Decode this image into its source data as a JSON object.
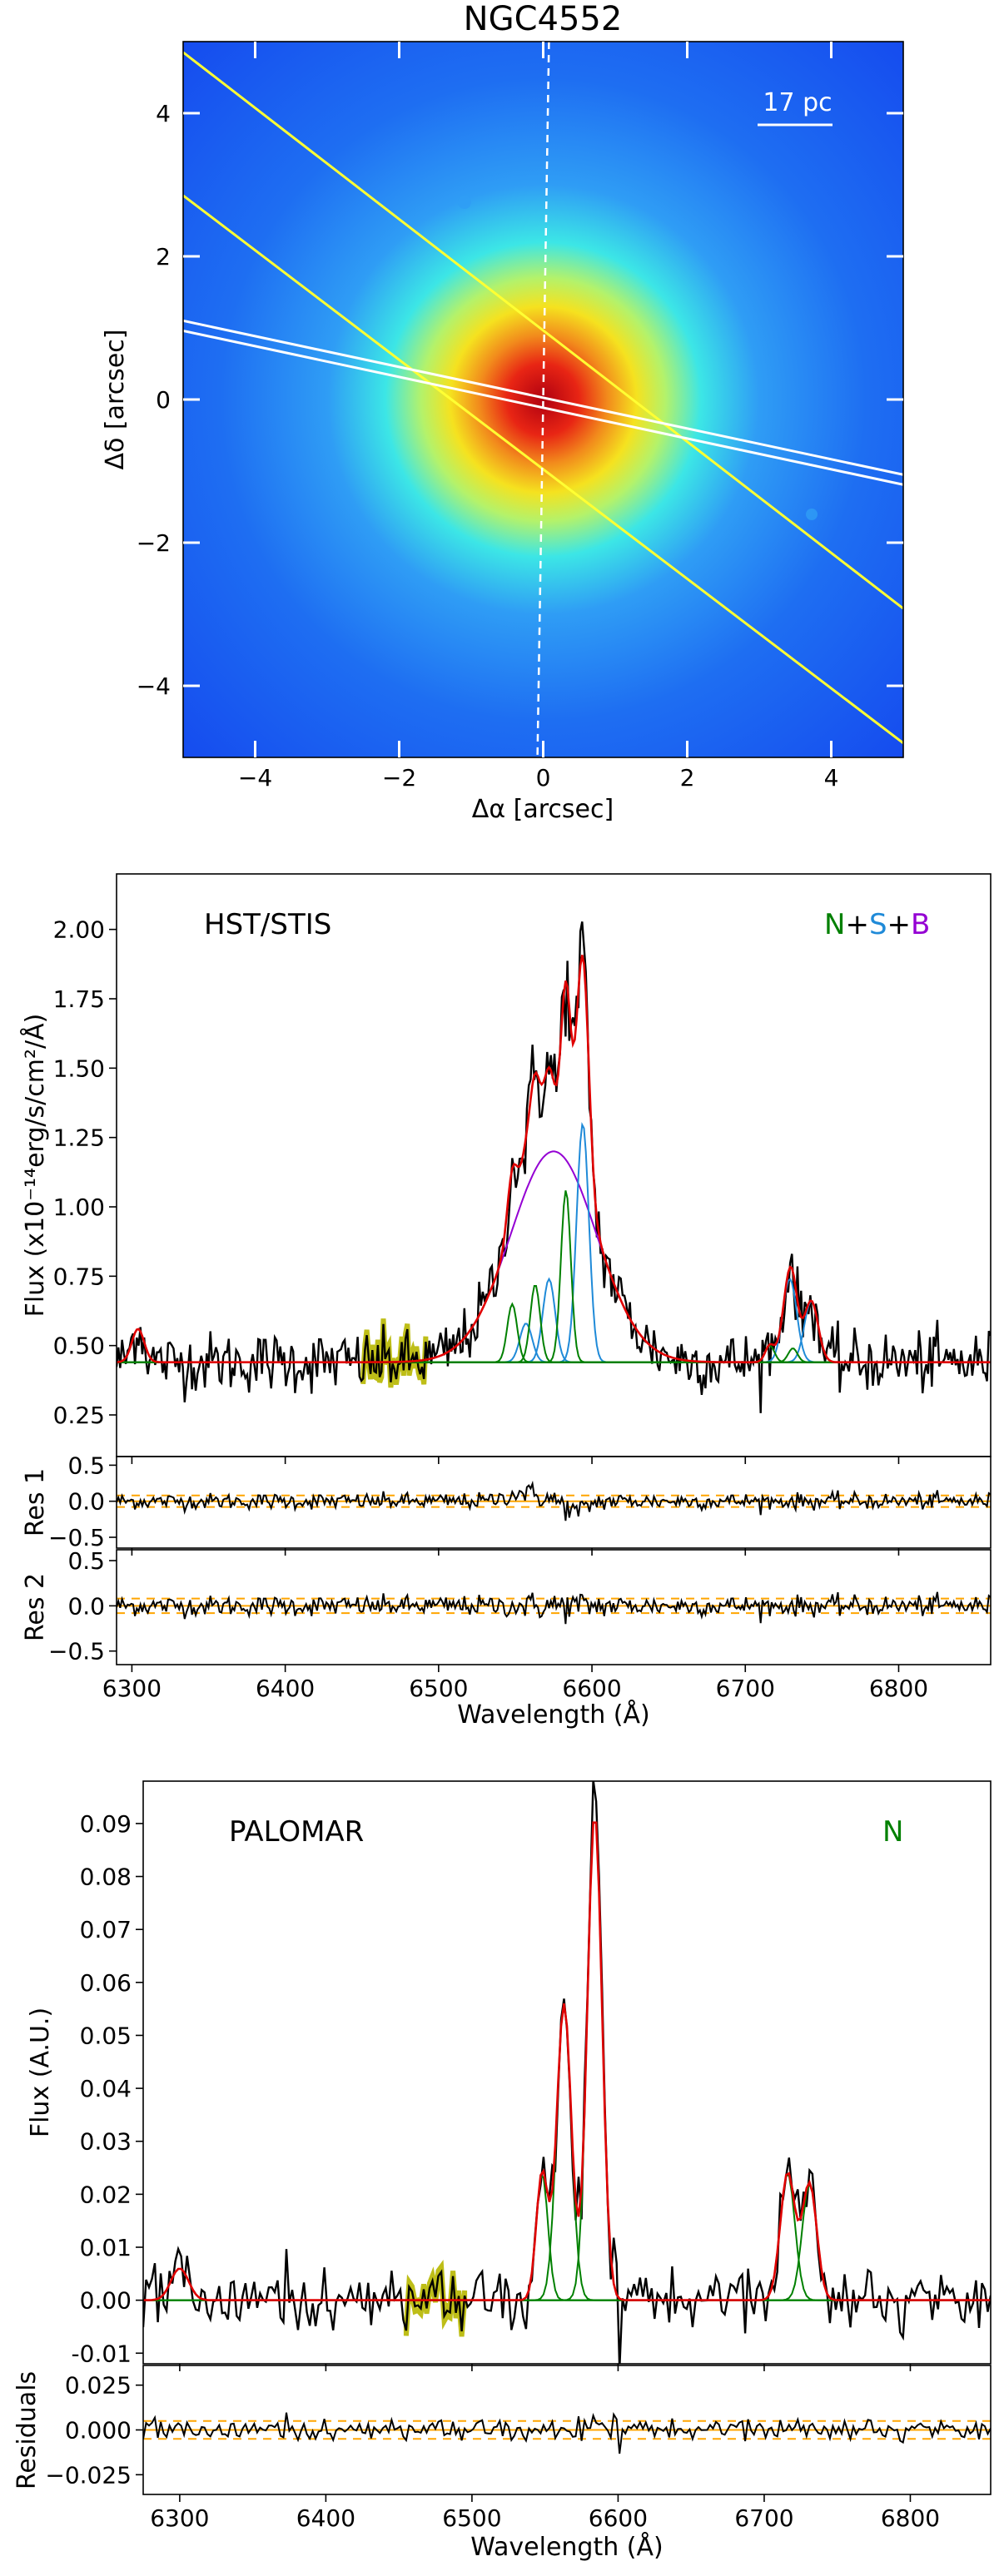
{
  "chart_data": [
    {
      "type": "heatmap",
      "title": "NGC4552",
      "xlabel": "Δα [arcsec]",
      "ylabel": "Δδ [arcsec]",
      "xlim": [
        -5,
        5
      ],
      "ylim": [
        -5,
        5
      ],
      "xticks": [
        -4,
        -2,
        0,
        2,
        4
      ],
      "yticks": [
        -4,
        -2,
        0,
        2,
        4
      ],
      "xtick_labels": [
        "−4",
        "−2",
        "0",
        "2",
        "4"
      ],
      "ytick_labels": [
        "−4",
        "−2",
        "0",
        "2",
        "4"
      ],
      "scale_bar_label": "17 pc",
      "colormap": [
        "#0a1f9e",
        "#1446ee",
        "#2f9df5",
        "#3ce6e6",
        "#b4f26a",
        "#f5e21f",
        "#f28c1c",
        "#e82514",
        "#b00010"
      ],
      "slit_lines": [
        {
          "color": "#ffff33",
          "p1": [
            -5,
            4.85
          ],
          "p2": [
            5,
            -2.92
          ]
        },
        {
          "color": "#ffff33",
          "p1": [
            -5,
            2.85
          ],
          "p2": [
            5,
            -4.8
          ]
        },
        {
          "color": "#ffffff",
          "p1": [
            -5,
            1.1
          ],
          "p2": [
            5,
            -1.05
          ]
        },
        {
          "color": "#ffffff",
          "p1": [
            -5,
            0.96
          ],
          "p2": [
            5,
            -1.19
          ]
        }
      ],
      "north_line": {
        "color": "#ffffff",
        "p1": [
          0.08,
          5
        ],
        "p2": [
          -0.08,
          -5
        ]
      }
    },
    {
      "type": "line",
      "label": "HST/STIS",
      "components_legend": [
        {
          "text": "N",
          "color": "#008000"
        },
        {
          "text": "+",
          "color": "#000000"
        },
        {
          "text": "S",
          "color": "#1f8ad8"
        },
        {
          "text": "+",
          "color": "#000000"
        },
        {
          "text": "B",
          "color": "#9400d3"
        }
      ],
      "xlabel": "Wavelength (Å)",
      "ylabel": "Flux (x10⁻¹⁴erg/s/cm²/Å)",
      "xlim": [
        6290,
        6860
      ],
      "ylim": [
        0.1,
        2.2
      ],
      "xticks": [
        6300,
        6400,
        6500,
        6600,
        6700,
        6800
      ],
      "yticks": [
        0.25,
        0.5,
        0.75,
        1.0,
        1.25,
        1.5,
        1.75,
        2.0
      ],
      "ytick_labels": [
        "0.25",
        "0.50",
        "0.75",
        "1.00",
        "1.25",
        "1.50",
        "1.75",
        "2.00"
      ],
      "continuum": 0.44,
      "broad": {
        "center": 6575,
        "amp": 0.76,
        "sigma": 28
      },
      "narrow_lines": [
        {
          "center": 6548,
          "amp": 0.21,
          "sigma": 3.2
        },
        {
          "center": 6563,
          "amp": 0.28,
          "sigma": 3.2
        },
        {
          "center": 6583,
          "amp": 0.62,
          "sigma": 3.2
        },
        {
          "center": 6716,
          "amp": 0.06,
          "sigma": 3.0
        },
        {
          "center": 6731,
          "amp": 0.05,
          "sigma": 3.0
        }
      ],
      "second_lines": [
        {
          "center": 6557,
          "amp": 0.14,
          "sigma": 4.0
        },
        {
          "center": 6572,
          "amp": 0.3,
          "sigma": 4.0
        },
        {
          "center": 6594,
          "amp": 0.86,
          "sigma": 4.0
        },
        {
          "center": 6304,
          "amp": 0.12,
          "sigma": 4.0
        },
        {
          "center": 6729,
          "amp": 0.3,
          "sigma": 4.5
        },
        {
          "center": 6743,
          "amp": 0.22,
          "sigma": 4.5
        }
      ],
      "highlight_range": [
        6450,
        6492
      ],
      "residual_panels": [
        {
          "label": "Res 1",
          "ylim": [
            -0.65,
            0.62
          ],
          "yticks": [
            -0.5,
            0.0,
            0.5
          ],
          "ytick_labels": [
            "−0.5",
            "0.0",
            "0.5"
          ],
          "band": 0.08
        },
        {
          "label": "Res 2",
          "ylim": [
            -0.65,
            0.62
          ],
          "yticks": [
            -0.5,
            0.0,
            0.5
          ],
          "ytick_labels": [
            "−0.5",
            "0.0",
            "0.5"
          ],
          "band": 0.08
        }
      ]
    },
    {
      "type": "line",
      "label": "PALOMAR",
      "components_legend": [
        {
          "text": "N",
          "color": "#008000"
        }
      ],
      "xlabel": "Wavelength (Å)",
      "ylabel": "Flux (A.U.)",
      "xlim": [
        6275,
        6855
      ],
      "ylim": [
        -0.012,
        0.098
      ],
      "xticks": [
        6300,
        6400,
        6500,
        6600,
        6700,
        6800
      ],
      "yticks": [
        -0.01,
        0.0,
        0.01,
        0.02,
        0.03,
        0.04,
        0.05,
        0.06,
        0.07,
        0.08,
        0.09
      ],
      "ytick_labels": [
        "-0.01",
        "0.00",
        "0.01",
        "0.02",
        "0.03",
        "0.04",
        "0.05",
        "0.06",
        "0.07",
        "0.08",
        "0.09"
      ],
      "continuum": 0.0,
      "narrow_lines": [
        {
          "center": 6300,
          "amp": 0.006,
          "sigma": 6
        },
        {
          "center": 6548,
          "amp": 0.024,
          "sigma": 4.0
        },
        {
          "center": 6563,
          "amp": 0.056,
          "sigma": 5.0
        },
        {
          "center": 6584,
          "amp": 0.092,
          "sigma": 5.0
        },
        {
          "center": 6716,
          "amp": 0.024,
          "sigma": 5.0
        },
        {
          "center": 6731,
          "amp": 0.022,
          "sigma": 5.0
        }
      ],
      "highlight_range": [
        6455,
        6495
      ],
      "residual_panels": [
        {
          "label": "Residuals",
          "ylim": [
            -0.036,
            0.036
          ],
          "yticks": [
            -0.025,
            0.0,
            0.025
          ],
          "ytick_labels": [
            "−0.025",
            "0.000",
            "0.025"
          ],
          "band": 0.005
        }
      ]
    }
  ]
}
